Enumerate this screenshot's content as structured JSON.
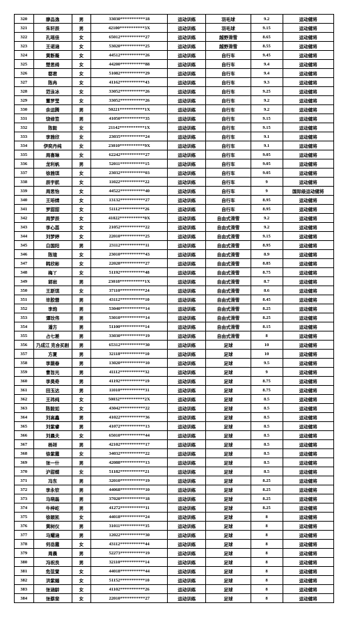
{
  "rows": [
    {
      "idx": "320",
      "name": "廖品逸",
      "gender": "男",
      "id": "33030***********18",
      "cat": "运动训练",
      "sport": "羽毛球",
      "score": "9.2",
      "result": "运动健将"
    },
    {
      "idx": "321",
      "name": "朱轩辰",
      "gender": "男",
      "id": "42100***********3X",
      "cat": "运动训练",
      "sport": "羽毛球",
      "score": "9.15",
      "result": "运动健将"
    },
    {
      "idx": "322",
      "name": "孔瑶佳",
      "gender": "女",
      "id": "65012***********27",
      "cat": "运动训练",
      "sport": "越野滑雪",
      "score": "8.65",
      "result": "运动健将"
    },
    {
      "idx": "323",
      "name": "王诺涵",
      "gender": "女",
      "id": "53020***********25",
      "cat": "运动训练",
      "sport": "越野滑雪",
      "score": "8.55",
      "result": "运动健将"
    },
    {
      "idx": "324",
      "name": "黄断薇",
      "gender": "女",
      "id": "44512***********26",
      "cat": "运动训练",
      "sport": "自行车",
      "score": "9.45",
      "result": "运动健将"
    },
    {
      "idx": "325",
      "name": "楚思绮",
      "gender": "女",
      "id": "44200***********88",
      "cat": "运动训练",
      "sport": "自行车",
      "score": "9.4",
      "result": "运动健将"
    },
    {
      "idx": "326",
      "name": "都君",
      "gender": "女",
      "id": "51082***********29",
      "cat": "运动训练",
      "sport": "自行车",
      "score": "9.4",
      "result": "运动健将"
    },
    {
      "idx": "327",
      "name": "陈冉",
      "gender": "女",
      "id": "41162***********43",
      "cat": "运动训练",
      "sport": "自行车",
      "score": "9.3",
      "result": "运动健将"
    },
    {
      "idx": "328",
      "name": "范泳冰",
      "gender": "女",
      "id": "33052***********26",
      "cat": "运动训练",
      "sport": "自行车",
      "score": "9.25",
      "result": "运动健将"
    },
    {
      "idx": "329",
      "name": "董罗莹",
      "gender": "女",
      "id": "33052***********26",
      "cat": "运动训练",
      "sport": "自行车",
      "score": "9.2",
      "result": "运动健将"
    },
    {
      "idx": "330",
      "name": "余运腾",
      "gender": "男",
      "id": "50221***********1X",
      "cat": "运动训练",
      "sport": "自行车",
      "score": "9.2",
      "result": "运动健将"
    },
    {
      "idx": "331",
      "name": "饶修笪",
      "gender": "男",
      "id": "41050***********35",
      "cat": "运动训练",
      "sport": "自行车",
      "score": "9.15",
      "result": "运动健将"
    },
    {
      "idx": "332",
      "name": "陈毅",
      "gender": "女",
      "id": "21142***********1X",
      "cat": "运动训练",
      "sport": "自行车",
      "score": "9.15",
      "result": "运动健将"
    },
    {
      "idx": "333",
      "name": "李雅欣",
      "gender": "女",
      "id": "23035***********24",
      "cat": "运动训练",
      "sport": "自行车",
      "score": "9.1",
      "result": "运动健将"
    },
    {
      "idx": "334",
      "name": "伊奕丹纯",
      "gender": "女",
      "id": "23010***********9X",
      "cat": "运动训练",
      "sport": "自行车",
      "score": "9.1",
      "result": "运动健将"
    },
    {
      "idx": "335",
      "name": "周喜琳",
      "gender": "女",
      "id": "62242***********27",
      "cat": "运动训练",
      "sport": "自行车",
      "score": "9.05",
      "result": "运动健将"
    },
    {
      "idx": "336",
      "name": "龙利帆",
      "gender": "男",
      "id": "52011***********15",
      "cat": "运动训练",
      "sport": "自行车",
      "score": "9.05",
      "result": "运动健将"
    },
    {
      "idx": "337",
      "name": "徐雅琪",
      "gender": "女",
      "id": "23032***********03",
      "cat": "运动训练",
      "sport": "自行车",
      "score": "9.05",
      "result": "运动健将"
    },
    {
      "idx": "338",
      "name": "辰宇航",
      "gender": "女",
      "id": "11022***********22",
      "cat": "运动训练",
      "sport": "自行车",
      "score": "9",
      "result": "运动健将"
    },
    {
      "idx": "339",
      "name": "周思怡",
      "gender": "女",
      "id": "44522***********40",
      "cat": "运动训练",
      "sport": "自行车",
      "score": "9",
      "result": "国际级运动健将"
    },
    {
      "idx": "340",
      "name": "王珔婧",
      "gender": "女",
      "id": "13132***********27",
      "cat": "运动训练",
      "sport": "自行车",
      "score": "8.95",
      "result": "运动健将"
    },
    {
      "idx": "341",
      "name": "罗甜甜",
      "gender": "女",
      "id": "51112***********26",
      "cat": "运动训练",
      "sport": "自行车",
      "score": "8.95",
      "result": "运动健将"
    },
    {
      "idx": "342",
      "name": "周梦辰",
      "gender": "女",
      "id": "41022***********0X",
      "cat": "运动训练",
      "sport": "自由式滑雪",
      "score": "9.2",
      "result": "运动健将"
    },
    {
      "idx": "343",
      "name": "李心蕊",
      "gender": "女",
      "id": "21052***********22",
      "cat": "运动训练",
      "sport": "自由式滑雪",
      "score": "9.2",
      "result": "运动健将"
    },
    {
      "idx": "344",
      "name": "刘梦婷",
      "gender": "女",
      "id": "22010***********25",
      "cat": "运动训练",
      "sport": "自由式滑雪",
      "score": "9.15",
      "result": "运动健将"
    },
    {
      "idx": "345",
      "name": "白国阳",
      "gender": "男",
      "id": "23112***********11",
      "cat": "运动训练",
      "sport": "自由式滑雪",
      "score": "8.95",
      "result": "运动健将"
    },
    {
      "idx": "346",
      "name": "陈瑄",
      "gender": "女",
      "id": "23010***********43",
      "cat": "运动训练",
      "sport": "自由式滑雪",
      "score": "8.9",
      "result": "运动健将"
    },
    {
      "idx": "347",
      "name": "韩欣彬",
      "gender": "女",
      "id": "22028***********27",
      "cat": "运动训练",
      "sport": "自由式滑雪",
      "score": "8.85",
      "result": "运动健将"
    },
    {
      "idx": "348",
      "name": "梅丫",
      "gender": "女",
      "id": "51192***********48",
      "cat": "运动训练",
      "sport": "自由式滑雪",
      "score": "8.75",
      "result": "运动健将"
    },
    {
      "idx": "349",
      "name": "郭岩",
      "gender": "男",
      "id": "23018***********1X",
      "cat": "运动训练",
      "sport": "自由式滑雪",
      "score": "8.7",
      "result": "运动健将"
    },
    {
      "idx": "350",
      "name": "王斯琪",
      "gender": "女",
      "id": "37110***********24",
      "cat": "运动训练",
      "sport": "自由式滑雪",
      "score": "8.6",
      "result": "运动健将"
    },
    {
      "idx": "351",
      "name": "毕胶蓉",
      "gender": "男",
      "id": "43112***********10",
      "cat": "运动训练",
      "sport": "自由式滑雪",
      "score": "8.45",
      "result": "运动健将"
    },
    {
      "idx": "352",
      "name": "李炮",
      "gender": "男",
      "id": "53040***********14",
      "cat": "运动训练",
      "sport": "自由式滑雪",
      "score": "8.25",
      "result": "运动健将"
    },
    {
      "idx": "353",
      "name": "谭玟伟",
      "gender": "男",
      "id": "53010***********14",
      "cat": "运动训练",
      "sport": "自由式滑雪",
      "score": "8.25",
      "result": "运动健将"
    },
    {
      "idx": "354",
      "name": "潘方",
      "gender": "男",
      "id": "51100***********14",
      "cat": "运动训练",
      "sport": "自由式滑雪",
      "score": "8.15",
      "result": "运动健将"
    },
    {
      "idx": "355",
      "name": "占七差",
      "gender": "男",
      "id": "33030***********19",
      "cat": "运动训练",
      "sport": "自由式滑雪",
      "score": "8",
      "result": "运动健将"
    },
    {
      "idx": "356",
      "name": "乃成江 克合买剧",
      "gender": "男",
      "id": "65312***********30",
      "cat": "运动训练",
      "sport": "足球",
      "score": "10",
      "result": "运动健将"
    },
    {
      "idx": "357",
      "name": "方夏",
      "gender": "男",
      "id": "32118***********10",
      "cat": "运动训练",
      "sport": "足球",
      "score": "10",
      "result": "运动健将"
    },
    {
      "idx": "358",
      "name": "李蔬春",
      "gender": "男",
      "id": "13020***********10",
      "cat": "运动训练",
      "sport": "足球",
      "score": "9.5",
      "result": "运动健将"
    },
    {
      "idx": "359",
      "name": "曹旨光",
      "gender": "男",
      "id": "41112***********32",
      "cat": "运动训练",
      "sport": "足球",
      "score": "9",
      "result": "运动健将"
    },
    {
      "idx": "360",
      "name": "李昊奇",
      "gender": "男",
      "id": "41192***********19",
      "cat": "运动训练",
      "sport": "足球",
      "score": "8.75",
      "result": "运动健将"
    },
    {
      "idx": "361",
      "name": "田玉达",
      "gender": "男",
      "id": "11010***********31",
      "cat": "运动训练",
      "sport": "足球",
      "score": "8.75",
      "result": "运动健将"
    },
    {
      "idx": "362",
      "name": "王祎纯",
      "gender": "女",
      "id": "50032***********2X",
      "cat": "运动训练",
      "sport": "足球",
      "score": "8.5",
      "result": "运动健将"
    },
    {
      "idx": "363",
      "name": "陈毅如",
      "gender": "女",
      "id": "43042***********22",
      "cat": "运动训练",
      "sport": "足球",
      "score": "8.5",
      "result": "运动健将"
    },
    {
      "idx": "364",
      "name": "刘高鑫",
      "gender": "男",
      "id": "41022***********36",
      "cat": "运动训练",
      "sport": "足球",
      "score": "8.5",
      "result": "运动健将"
    },
    {
      "idx": "365",
      "name": "刘紫睿",
      "gender": "男",
      "id": "41072***********13",
      "cat": "运动训练",
      "sport": "足球",
      "score": "8.5",
      "result": "运动健将"
    },
    {
      "idx": "366",
      "name": "刘晨夫",
      "gender": "女",
      "id": "65010***********44",
      "cat": "运动训练",
      "sport": "足球",
      "score": "8.5",
      "result": "运动健将"
    },
    {
      "idx": "367",
      "name": "杨祥",
      "gender": "男",
      "id": "42102***********17",
      "cat": "运动训练",
      "sport": "足球",
      "score": "8.5",
      "result": "运动健将"
    },
    {
      "idx": "368",
      "name": "徐紫霞",
      "gender": "女",
      "id": "34032***********22",
      "cat": "运动训练",
      "sport": "足球",
      "score": "8.5",
      "result": "运动健将"
    },
    {
      "idx": "369",
      "name": "张一什",
      "gender": "男",
      "id": "42088***********13",
      "cat": "运动训练",
      "sport": "足球",
      "score": "8.5",
      "result": "运动健将"
    },
    {
      "idx": "370",
      "name": "沪甜蝶",
      "gender": "女",
      "id": "51182***********21",
      "cat": "运动训练",
      "sport": "足球",
      "score": "8.5",
      "result": "运动健将"
    },
    {
      "idx": "371",
      "name": "冯东",
      "gender": "男",
      "id": "32010***********19",
      "cat": "运动训练",
      "sport": "足球",
      "score": "8.25",
      "result": "运动健将"
    },
    {
      "idx": "372",
      "name": "李永钦",
      "gender": "男",
      "id": "44068***********10",
      "cat": "运动训练",
      "sport": "足球",
      "score": "8.25",
      "result": "运动健将"
    },
    {
      "idx": "373",
      "name": "马晓磊",
      "gender": "男",
      "id": "37020***********18",
      "cat": "运动训练",
      "sport": "足球",
      "score": "8.25",
      "result": "运动健将"
    },
    {
      "idx": "374",
      "name": "牛梓屹",
      "gender": "男",
      "id": "41272***********11",
      "cat": "运动训练",
      "sport": "足球",
      "score": "8.25",
      "result": "运动健将"
    },
    {
      "idx": "375",
      "name": "徐颖凯",
      "gender": "女",
      "id": "44018***********24",
      "cat": "运动训练",
      "sport": "足球",
      "score": "8",
      "result": "运动健将"
    },
    {
      "idx": "376",
      "name": "黄树仪",
      "gender": "男",
      "id": "31011***********35",
      "cat": "运动训练",
      "sport": "足球",
      "score": "8",
      "result": "运动健将"
    },
    {
      "idx": "377",
      "name": "马耀涵",
      "gender": "男",
      "id": "12022***********30",
      "cat": "运动训练",
      "sport": "足球",
      "score": "8",
      "result": "运动健将"
    },
    {
      "idx": "378",
      "name": "何岳霞",
      "gender": "女",
      "id": "43112***********44",
      "cat": "运动训练",
      "sport": "足球",
      "score": "8",
      "result": "运动健将"
    },
    {
      "idx": "379",
      "name": "周晨",
      "gender": "男",
      "id": "52273***********19",
      "cat": "运动训练",
      "sport": "足球",
      "score": "8",
      "result": "运动健将"
    },
    {
      "idx": "380",
      "name": "冯祝良",
      "gender": "男",
      "id": "32110***********14",
      "cat": "运动训练",
      "sport": "足球",
      "score": "8",
      "result": "运动健将"
    },
    {
      "idx": "381",
      "name": "危弦萱",
      "gender": "女",
      "id": "44018***********44",
      "cat": "运动训练",
      "sport": "足球",
      "score": "8",
      "result": "运动健将"
    },
    {
      "idx": "382",
      "name": "洪紫媚",
      "gender": "女",
      "id": "51152***********10",
      "cat": "运动训练",
      "sport": "足球",
      "score": "8",
      "result": "运动健将"
    },
    {
      "idx": "383",
      "name": "张涵龄",
      "gender": "女",
      "id": "41102***********26",
      "cat": "运动训练",
      "sport": "足球",
      "score": "8",
      "result": "运动健将"
    },
    {
      "idx": "384",
      "name": "张蔡斐",
      "gender": "女",
      "id": "22010***********27",
      "cat": "运动训练",
      "sport": "足球",
      "score": "8",
      "result": "运动健将"
    }
  ]
}
